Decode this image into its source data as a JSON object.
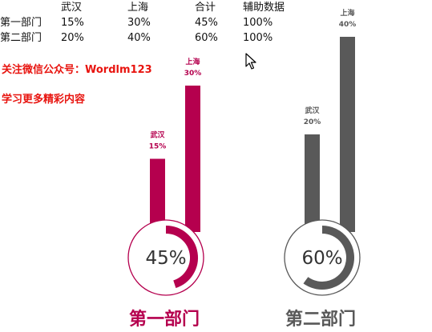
{
  "table": {
    "headers": [
      "",
      "武汉",
      "上海",
      "合计",
      "辅助数据"
    ],
    "rows": [
      [
        "第一部门",
        "15%",
        "30%",
        "45%",
        "100%"
      ],
      [
        "第二部门",
        "20%",
        "40%",
        "60%",
        "100%"
      ]
    ]
  },
  "notice": {
    "line1": "关注微信公众号：Wordlm123",
    "line2": "学习更多精彩内容"
  },
  "colors": {
    "dept1": "#b5004e",
    "dept2": "#595959",
    "notice": "#e8140f"
  },
  "chart_data": [
    {
      "type": "bar",
      "title": "第一部门",
      "categories": [
        "武汉",
        "上海"
      ],
      "values": [
        15,
        30
      ],
      "value_labels": [
        "15%",
        "30%"
      ],
      "total": 45,
      "total_label": "45%",
      "color": "#b5004e"
    },
    {
      "type": "bar",
      "title": "第二部门",
      "categories": [
        "武汉",
        "上海"
      ],
      "values": [
        20,
        40
      ],
      "value_labels": [
        "20%",
        "40%"
      ],
      "total": 60,
      "total_label": "60%",
      "color": "#595959"
    }
  ]
}
